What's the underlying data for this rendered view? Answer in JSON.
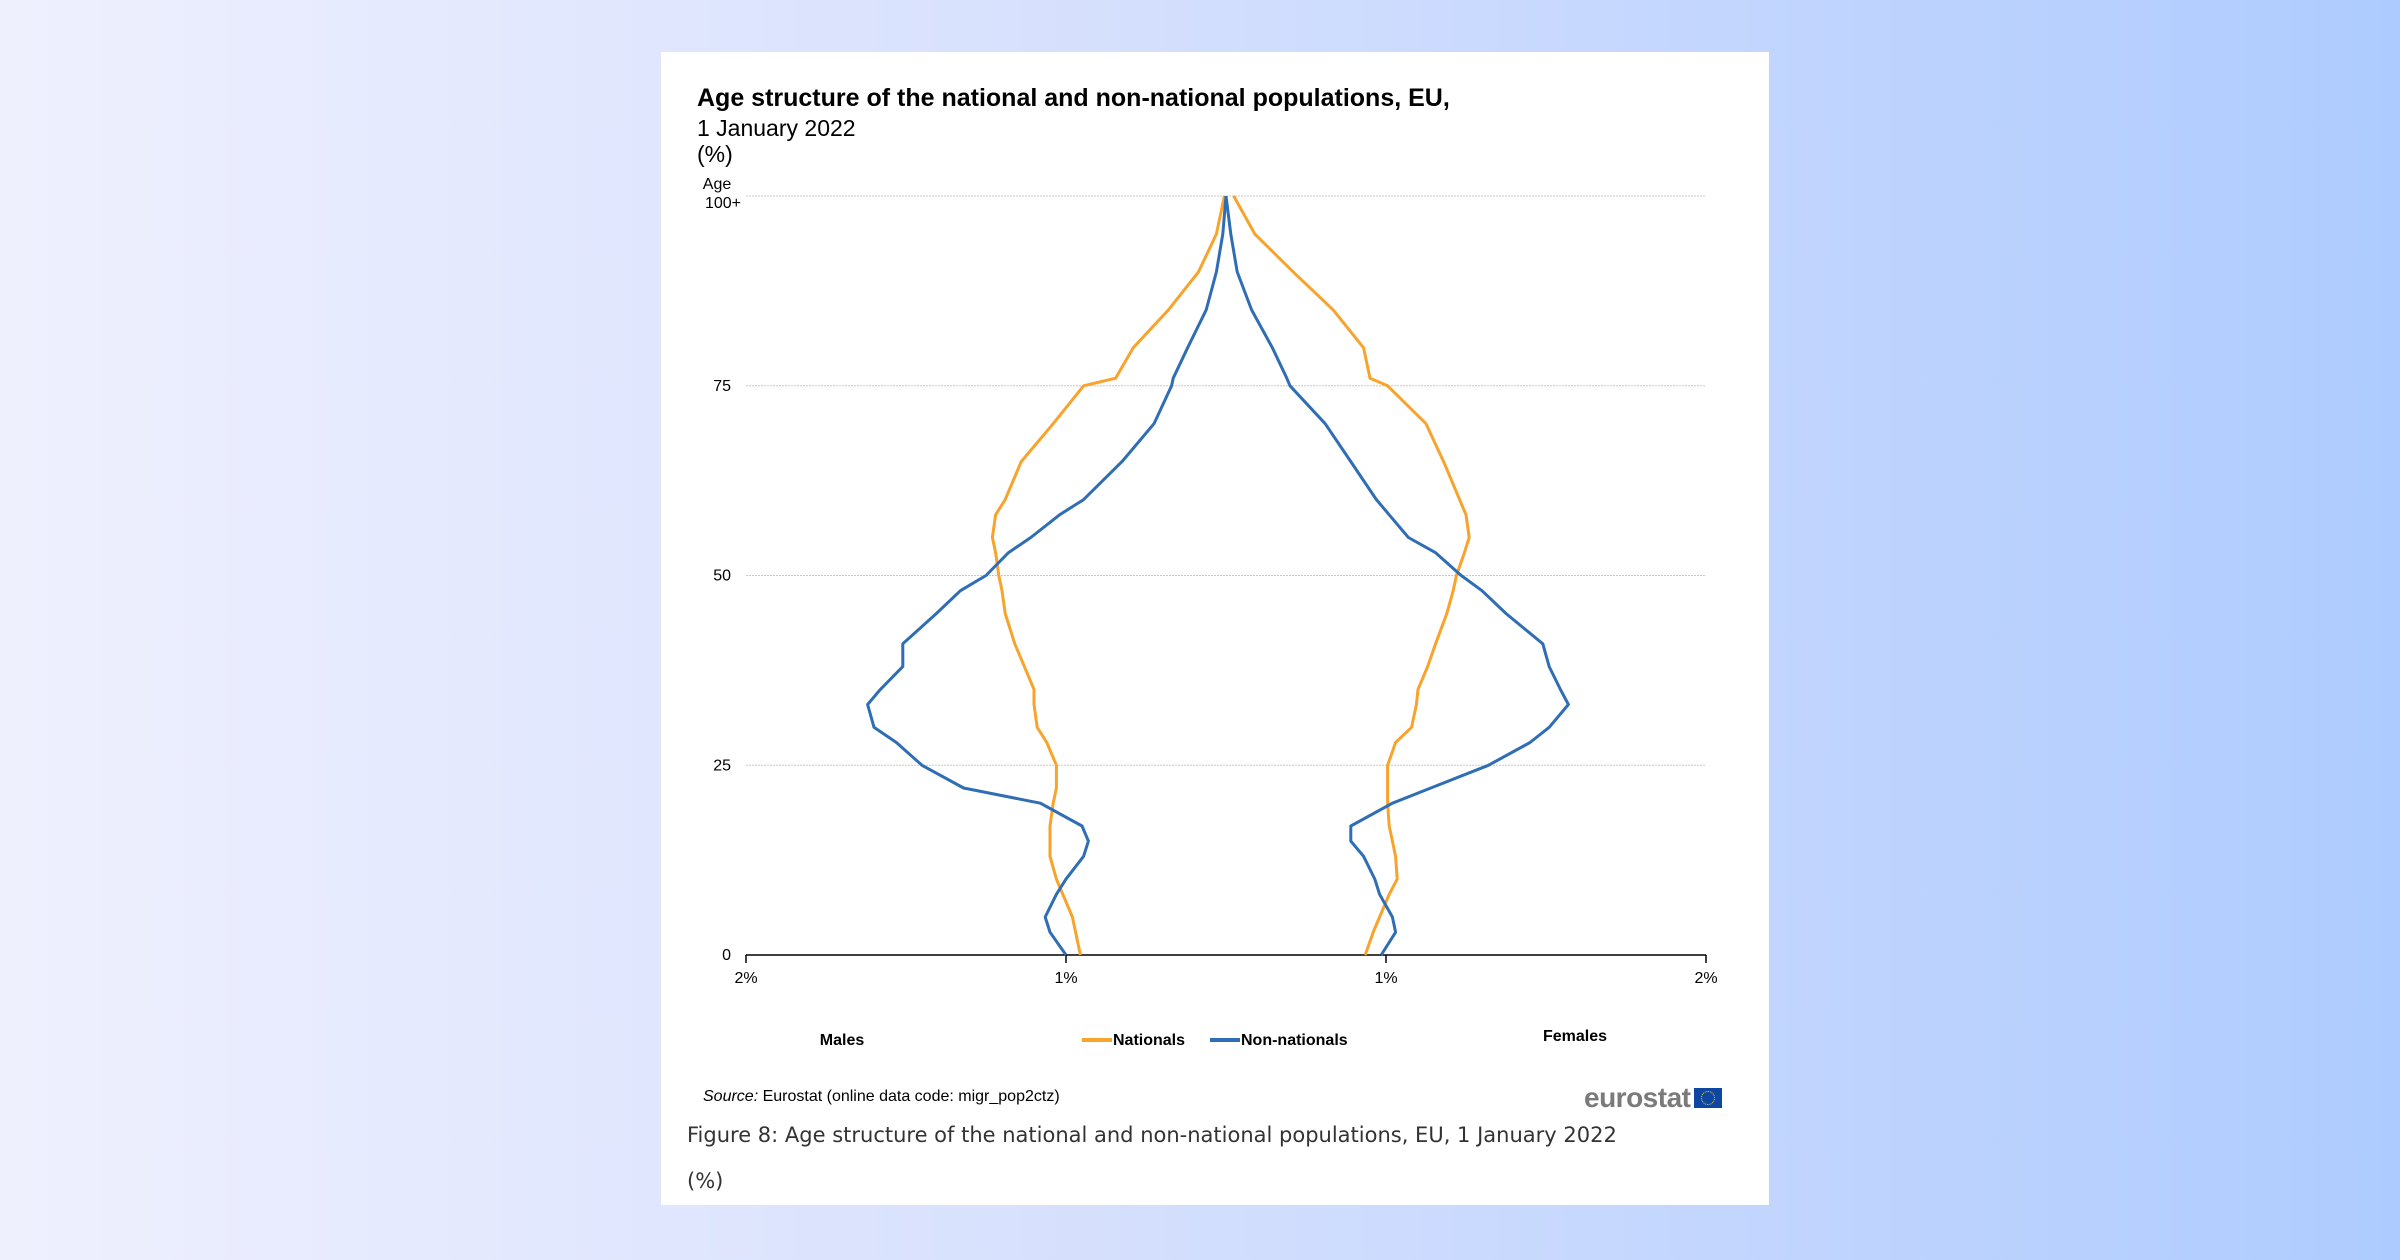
{
  "figure": {
    "caption": "Figure 8: Age structure of the national and non-national populations, EU, 1 January 2022",
    "caption_unit": "(%)",
    "source_label": "Source:",
    "source_text": " Eurostat (online data code: migr_pop2ctz)",
    "logo_text": "eurostat"
  },
  "chart_data": {
    "type": "line",
    "title": "Age structure of the national and non-national populations, EU,",
    "subtitle": "1 January 2022",
    "unit": "(%)",
    "ylabel": "Age",
    "yticks": [
      {
        "value": 0,
        "label": "0"
      },
      {
        "value": 25,
        "label": "25"
      },
      {
        "value": 50,
        "label": "50"
      },
      {
        "value": 75,
        "label": "75"
      },
      {
        "value": 100,
        "label": "100+"
      }
    ],
    "ylim": [
      0,
      100
    ],
    "xlim": [
      -1.5,
      1.5
    ],
    "xticks": [
      {
        "value": -1.5,
        "label": "2%"
      },
      {
        "value": -0.5,
        "label": "1%"
      },
      {
        "value": 0.5,
        "label": "1%"
      },
      {
        "value": 1.5,
        "label": "2%"
      }
    ],
    "grid": true,
    "left_label": "Males",
    "right_label": "Females",
    "legend_position": "bottom",
    "colors": {
      "Nationals": "#f7a32c",
      "Non-nationals": "#2f6db5"
    },
    "ages": [
      0,
      3,
      5,
      8,
      10,
      13,
      15,
      17,
      20,
      22,
      25,
      28,
      30,
      33,
      35,
      38,
      41,
      45,
      48,
      50,
      53,
      55,
      58,
      60,
      65,
      70,
      75,
      76,
      80,
      85,
      90,
      95,
      100
    ],
    "series": [
      {
        "name": "Nationals",
        "side": "Males",
        "values": [
          0.455,
          0.47,
          0.48,
          0.51,
          0.53,
          0.55,
          0.55,
          0.55,
          0.54,
          0.53,
          0.53,
          0.56,
          0.59,
          0.6,
          0.6,
          0.63,
          0.66,
          0.69,
          0.7,
          0.71,
          0.72,
          0.73,
          0.72,
          0.69,
          0.64,
          0.54,
          0.445,
          0.345,
          0.29,
          0.18,
          0.086,
          0.03,
          0.005
        ]
      },
      {
        "name": "Non-nationals",
        "side": "Males",
        "values": [
          0.5,
          0.55,
          0.565,
          0.53,
          0.5,
          0.445,
          0.43,
          0.45,
          0.58,
          0.82,
          0.95,
          1.03,
          1.1,
          1.12,
          1.08,
          1.01,
          1.01,
          0.905,
          0.83,
          0.75,
          0.68,
          0.61,
          0.52,
          0.445,
          0.325,
          0.225,
          0.17,
          0.165,
          0.12,
          0.062,
          0.03,
          0.01,
          0
        ]
      },
      {
        "name": "Nationals",
        "side": "Females",
        "values": [
          0.435,
          0.46,
          0.48,
          0.51,
          0.535,
          0.53,
          0.52,
          0.51,
          0.505,
          0.505,
          0.505,
          0.53,
          0.58,
          0.595,
          0.6,
          0.63,
          0.655,
          0.69,
          0.71,
          0.72,
          0.745,
          0.76,
          0.75,
          0.73,
          0.68,
          0.625,
          0.505,
          0.45,
          0.43,
          0.335,
          0.21,
          0.09,
          0.024
        ]
      },
      {
        "name": "Non-nationals",
        "side": "Females",
        "values": [
          0.485,
          0.53,
          0.52,
          0.48,
          0.465,
          0.43,
          0.39,
          0.39,
          0.52,
          0.64,
          0.82,
          0.95,
          1.01,
          1.07,
          1.045,
          1.01,
          0.99,
          0.875,
          0.8,
          0.735,
          0.655,
          0.57,
          0.51,
          0.47,
          0.39,
          0.31,
          0.2,
          0.19,
          0.145,
          0.08,
          0.035,
          0.015,
          0
        ]
      }
    ],
    "legend": [
      "Nationals",
      "Non-nationals"
    ]
  }
}
